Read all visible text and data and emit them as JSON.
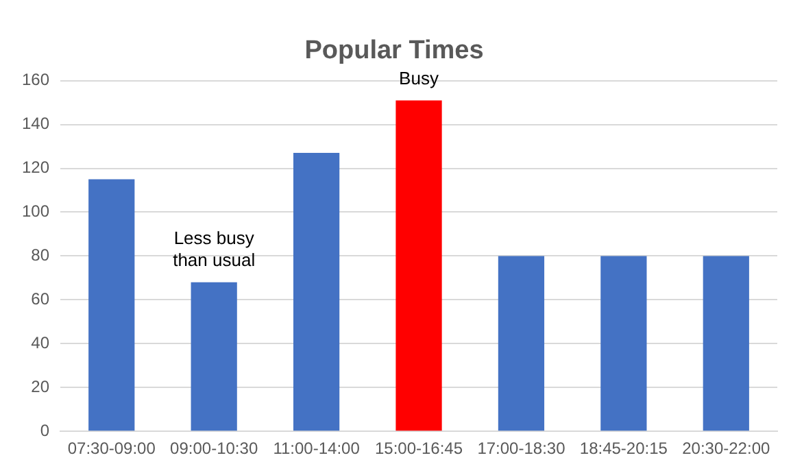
{
  "chart_data": {
    "type": "bar",
    "title": "Popular Times",
    "categories": [
      "07:30-09:00",
      "09:00-10:30",
      "11:00-14:00",
      "15:00-16:45",
      "17:00-18:30",
      "18:45-20:15",
      "20:30-22:00"
    ],
    "values": [
      115,
      68,
      127,
      151,
      80,
      80,
      80
    ],
    "colors": [
      "#4472c4",
      "#4472c4",
      "#4472c4",
      "#ff0000",
      "#4472c4",
      "#4472c4",
      "#4472c4"
    ],
    "ylim": [
      0,
      160
    ],
    "yticks": [
      0,
      20,
      40,
      60,
      80,
      100,
      120,
      140,
      160
    ],
    "grid": "y",
    "legend": false,
    "annotations": [
      {
        "text": "Less busy than usual",
        "x": "09:00-10:30",
        "y": 68
      },
      {
        "text": "Busy",
        "x": "15:00-16:45",
        "y": 151
      }
    ]
  }
}
